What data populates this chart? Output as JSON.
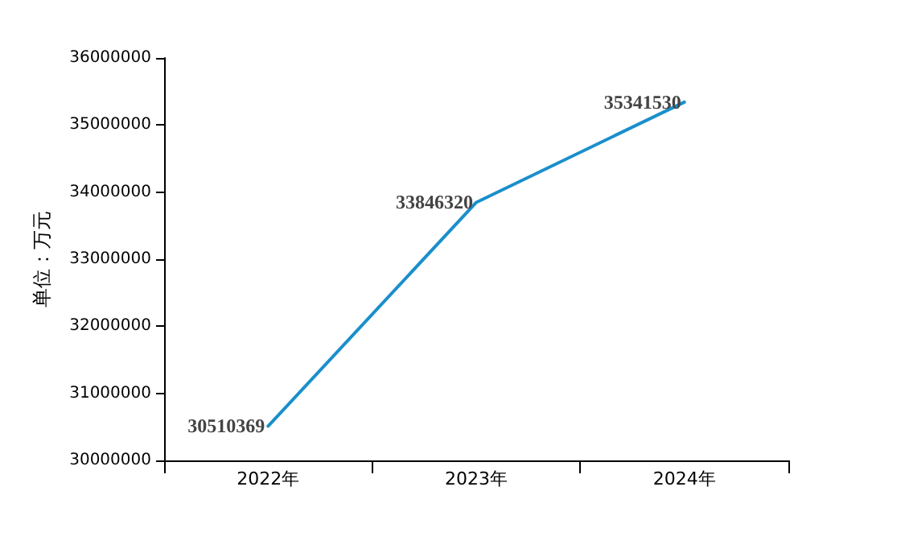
{
  "chart_data": {
    "type": "line",
    "ylabel": "单位：万元",
    "categories": [
      "2022年",
      "2023年",
      "2024年"
    ],
    "series": [
      {
        "color": "#1a8fcc",
        "values": [
          30510369,
          33846320,
          35341530
        ]
      }
    ],
    "ylim": [
      30000000,
      36000000
    ],
    "yticks": [
      30000000,
      31000000,
      32000000,
      33000000,
      34000000,
      35000000,
      36000000
    ],
    "data_labels": true,
    "grid": false,
    "marker": "none",
    "line_style": "solid"
  }
}
